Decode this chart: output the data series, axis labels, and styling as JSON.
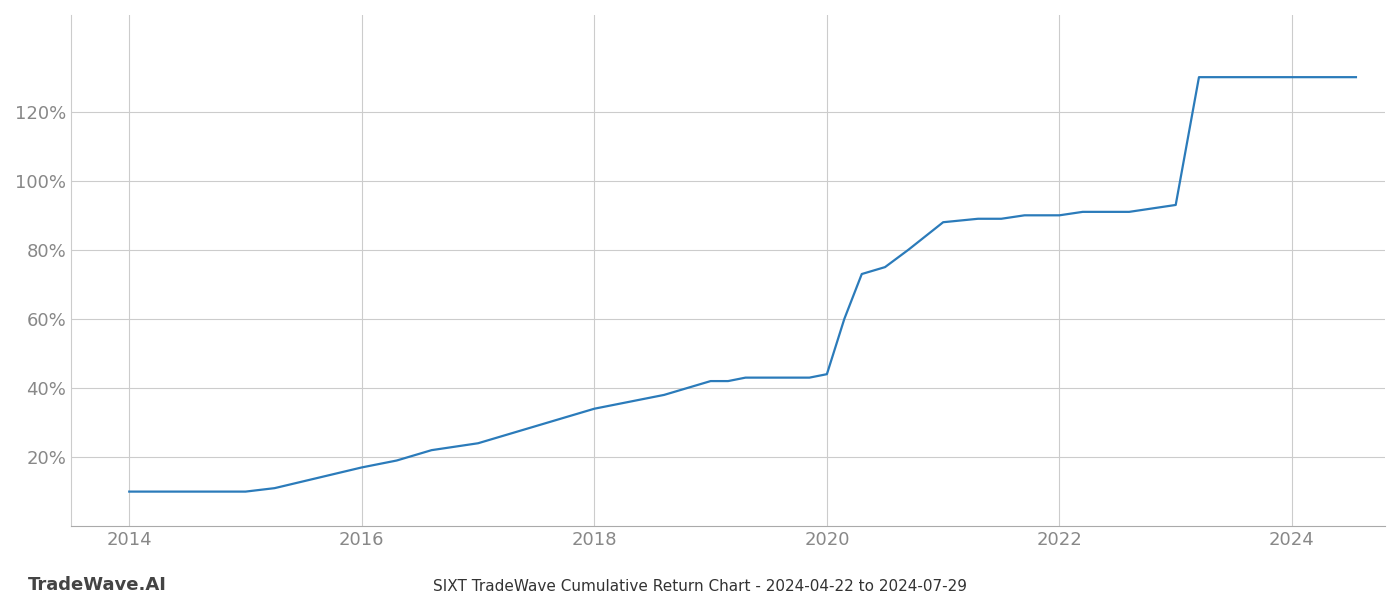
{
  "title": "SIXT TradeWave Cumulative Return Chart - 2024-04-22 to 2024-07-29",
  "watermark": "TradeWave.AI",
  "line_color": "#2b7bba",
  "line_width": 1.6,
  "background_color": "#ffffff",
  "grid_color": "#cccccc",
  "x_data": [
    2014.0,
    2014.25,
    2015.0,
    2015.25,
    2015.5,
    2016.0,
    2016.3,
    2016.6,
    2017.0,
    2017.3,
    2017.6,
    2018.0,
    2018.3,
    2018.6,
    2019.0,
    2019.15,
    2019.3,
    2019.5,
    2019.7,
    2019.85,
    2020.0,
    2020.15,
    2020.3,
    2020.5,
    2020.7,
    2021.0,
    2021.3,
    2021.5,
    2021.7,
    2022.0,
    2022.2,
    2022.4,
    2022.6,
    2022.8,
    2023.0,
    2023.2,
    2023.5,
    2024.0,
    2024.55
  ],
  "y_data": [
    10,
    10,
    10,
    11,
    13,
    17,
    19,
    22,
    24,
    27,
    30,
    34,
    36,
    38,
    42,
    42,
    43,
    43,
    43,
    43,
    44,
    60,
    73,
    75,
    80,
    88,
    89,
    89,
    90,
    90,
    91,
    91,
    91,
    92,
    93,
    130,
    130,
    130,
    130
  ],
  "xlim": [
    2013.5,
    2024.8
  ],
  "ylim": [
    0,
    148
  ],
  "yticks": [
    20,
    40,
    60,
    80,
    100,
    120
  ],
  "xticks": [
    2014,
    2016,
    2018,
    2020,
    2022,
    2024
  ],
  "tick_label_color": "#888888",
  "tick_fontsize": 13,
  "title_fontsize": 11,
  "watermark_fontsize": 13
}
